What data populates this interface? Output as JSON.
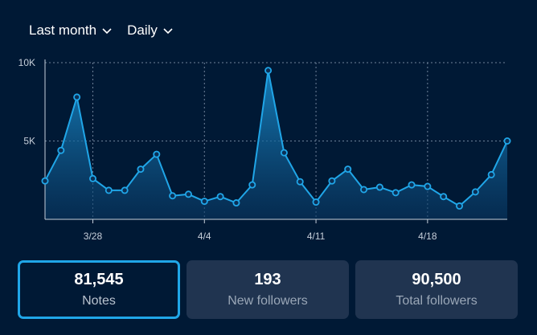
{
  "filters": {
    "range": "Last month",
    "granularity": "Daily"
  },
  "icons": {
    "dropdown": "chevron-down-icon"
  },
  "colors": {
    "background": "#001935",
    "line": "#20a6e8",
    "accent": "#20a6e8",
    "card": "#203450"
  },
  "chart_data": {
    "type": "area",
    "title": "",
    "xlabel": "",
    "ylabel": "",
    "ylim": [
      0,
      10000
    ],
    "y_ticks": [
      {
        "value": 10000,
        "label": "10K"
      },
      {
        "value": 5000,
        "label": "5K"
      }
    ],
    "x_ticks": [
      "3/28",
      "4/4",
      "4/11",
      "4/18"
    ],
    "grid": true,
    "x": [
      "3/25",
      "3/26",
      "3/27",
      "3/28",
      "3/29",
      "3/30",
      "3/31",
      "4/1",
      "4/2",
      "4/3",
      "4/4",
      "4/5",
      "4/6",
      "4/7",
      "4/8",
      "4/9",
      "4/10",
      "4/11",
      "4/12",
      "4/13",
      "4/14",
      "4/15",
      "4/16",
      "4/17",
      "4/18",
      "4/19",
      "4/20",
      "4/21",
      "4/22",
      "4/23"
    ],
    "series": [
      {
        "values": [
          2450,
          4400,
          7800,
          2600,
          1850,
          1850,
          3200,
          4150,
          1500,
          1600,
          1150,
          1450,
          1050,
          2200,
          9500,
          4250,
          2400,
          1100,
          2450,
          3200,
          1900,
          2050,
          1700,
          2200,
          2100,
          1450,
          850,
          1750,
          2850,
          5000
        ]
      }
    ]
  },
  "stats": [
    {
      "value": "81,545",
      "label": "Notes"
    },
    {
      "value": "193",
      "label": "New followers"
    },
    {
      "value": "90,500",
      "label": "Total followers"
    }
  ]
}
